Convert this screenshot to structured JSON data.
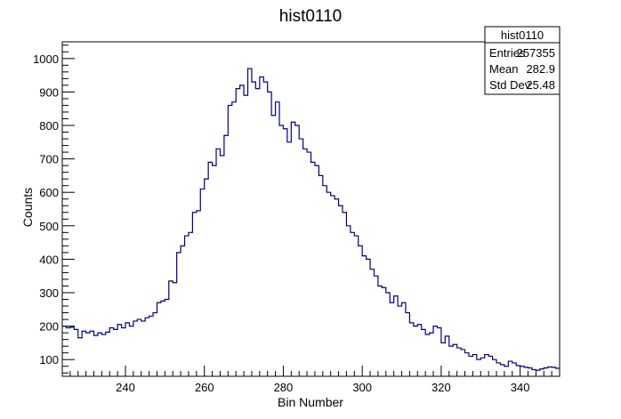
{
  "chart_data": {
    "type": "histogram",
    "title": "hist0110",
    "xlabel": "Bin Number",
    "ylabel": "Counts",
    "xlim": [
      224,
      350
    ],
    "ylim": [
      50,
      1050
    ],
    "xticks": [
      240,
      260,
      280,
      300,
      320,
      340
    ],
    "yticks": [
      100,
      200,
      300,
      400,
      500,
      600,
      700,
      800,
      900,
      1000
    ],
    "line_color": "#000080",
    "legend": "none",
    "grid": false,
    "stats": {
      "name": "hist0110",
      "rows": [
        {
          "label": "Entries",
          "value": "257355"
        },
        {
          "label": "Mean",
          "value": "282.9"
        },
        {
          "label": "Std Dev",
          "value": "25.48"
        }
      ]
    },
    "bin_start": 224,
    "bin_width": 1,
    "values": [
      200,
      195,
      197,
      190,
      165,
      185,
      180,
      185,
      172,
      180,
      175,
      182,
      195,
      190,
      205,
      195,
      210,
      200,
      215,
      220,
      215,
      225,
      230,
      240,
      270,
      275,
      280,
      335,
      330,
      420,
      440,
      470,
      480,
      540,
      545,
      610,
      640,
      690,
      680,
      730,
      710,
      770,
      860,
      870,
      910,
      920,
      890,
      970,
      930,
      910,
      945,
      930,
      900,
      830,
      870,
      800,
      790,
      750,
      810,
      800,
      760,
      730,
      720,
      690,
      680,
      650,
      620,
      600,
      590,
      580,
      560,
      540,
      500,
      480,
      470,
      440,
      410,
      400,
      370,
      350,
      320,
      315,
      300,
      270,
      290,
      260,
      270,
      240,
      210,
      200,
      205,
      190,
      175,
      180,
      200,
      195,
      150,
      170,
      140,
      145,
      135,
      130,
      120,
      110,
      115,
      100,
      105,
      115,
      110,
      100,
      90,
      85,
      80,
      95,
      90,
      82,
      80,
      77,
      75,
      70,
      68,
      72,
      75,
      78,
      77,
      74
    ]
  }
}
